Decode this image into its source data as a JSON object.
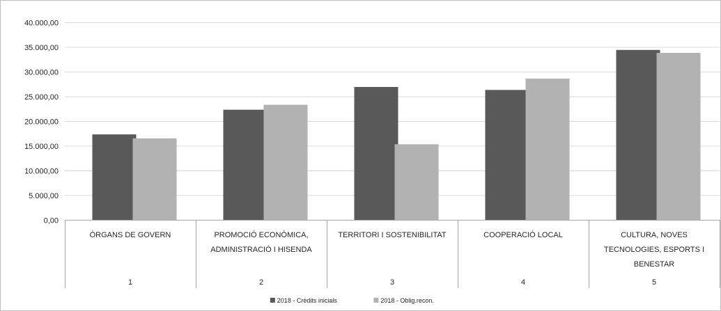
{
  "chart_data": {
    "type": "bar",
    "categories": [
      "ÒRGANS DE GOVERN",
      "PROMOCIÓ ECONÒMICA, ADMINISTRACIÓ I HISENDA",
      "TERRITORI I SOSTENIBILITAT",
      "COOPERACIÓ LOCAL",
      "CULTURA, NOVES TECNOLOGIES, ESPORTS I BENESTAR"
    ],
    "category_lines": [
      [
        "ÒRGANS DE GOVERN"
      ],
      [
        "PROMOCIÓ ECONÒMICA,",
        "ADMINISTRACIÓ I HISENDA"
      ],
      [
        "TERRITORI I SOSTENIBILITAT"
      ],
      [
        "COOPERACIÓ LOCAL"
      ],
      [
        "CULTURA, NOVES",
        "TECNOLOGIES, ESPORTS I",
        "BENESTAR"
      ]
    ],
    "category_index": [
      "1",
      "2",
      "3",
      "4",
      "5"
    ],
    "series": [
      {
        "name": "2018 - Crèdits inicials",
        "color": "#595959",
        "values": [
          17300,
          22300,
          26900,
          26300,
          34400
        ]
      },
      {
        "name": "2018 - Oblig.recon.",
        "color": "#b2b2b2",
        "values": [
          16500,
          23300,
          15300,
          28600,
          33800
        ]
      }
    ],
    "ylim": [
      0,
      40000
    ],
    "yticks": [
      0,
      5000,
      10000,
      15000,
      20000,
      25000,
      30000,
      35000,
      40000
    ],
    "ytick_labels": [
      "0,00",
      "5.000,00",
      "10.000,00",
      "15.000,00",
      "20.000,00",
      "25.000,00",
      "30.000,00",
      "35.000,00",
      "40.000,00"
    ],
    "grid": true,
    "legend_position": "bottom",
    "title": "",
    "xlabel": "",
    "ylabel": ""
  }
}
